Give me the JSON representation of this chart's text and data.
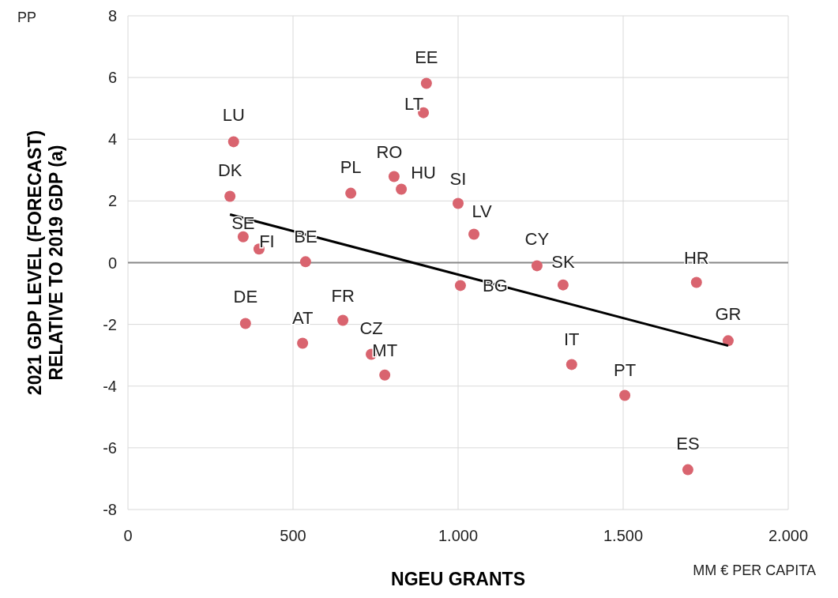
{
  "chart_data": {
    "type": "scatter",
    "xlabel": "NGEU GRANTS",
    "ylabel": "2021 GDP LEVEL (FORECAST)\nRELATIVE TO 2019 GDP (a)",
    "xlim": [
      0,
      2000
    ],
    "xticks": [
      {
        "value": 0,
        "label": "0"
      },
      {
        "value": 500,
        "label": "500"
      },
      {
        "value": 1000,
        "label": "1.000"
      },
      {
        "value": 1500,
        "label": "1.500"
      },
      {
        "value": 2000,
        "label": "2.000"
      }
    ],
    "ylim": [
      -8,
      8
    ],
    "yticks": [
      -8,
      -6,
      -4,
      -2,
      0,
      2,
      4,
      6,
      8
    ],
    "grid": true,
    "ref_lines": [
      {
        "axis": "y",
        "value": 0,
        "color": "#888888"
      }
    ],
    "series": [
      {
        "marker": "circle",
        "color": "#d9646f",
        "x": [
          320,
          309,
          349,
          397,
          538,
          356,
          529,
          675,
          651,
          737,
          778,
          806,
          828,
          895,
          904,
          1000,
          1048,
          1007,
          1239,
          1318,
          1344,
          1505,
          1722,
          1818,
          1696
        ],
        "values": [
          3.92,
          2.15,
          0.84,
          0.44,
          0.03,
          -1.97,
          -2.61,
          2.25,
          -1.87,
          -2.97,
          -3.64,
          2.79,
          2.38,
          4.86,
          5.81,
          1.92,
          0.92,
          -0.74,
          -0.1,
          -0.72,
          -3.3,
          -4.3,
          -0.64,
          -2.53,
          -6.71
        ]
      },
      {
        "type": "line",
        "color": "#000000",
        "x": [
          309,
          1818
        ],
        "values": [
          1.56,
          -2.69
        ]
      }
    ],
    "annotations": [
      "PP",
      "MM € PER CAPITA",
      {
        "text": "LU",
        "x": 320,
        "y": 3.92
      },
      {
        "text": "DK",
        "x": 309,
        "y": 2.15
      },
      {
        "text": "SE",
        "x": 349,
        "y": 0.84
      },
      {
        "text": "FI",
        "x": 397,
        "y": 0.44
      },
      {
        "text": "BE",
        "x": 538,
        "y": 0.03
      },
      {
        "text": "DE",
        "x": 356,
        "y": -1.97
      },
      {
        "text": "AT",
        "x": 529,
        "y": -2.61
      },
      {
        "text": "PL",
        "x": 675,
        "y": 2.25
      },
      {
        "text": "FR",
        "x": 651,
        "y": -1.87
      },
      {
        "text": "CZ",
        "x": 737,
        "y": -2.97
      },
      {
        "text": "MT",
        "x": 778,
        "y": -3.64
      },
      {
        "text": "RO",
        "x": 806,
        "y": 2.79
      },
      {
        "text": "HU",
        "x": 828,
        "y": 2.38
      },
      {
        "text": "LT",
        "x": 895,
        "y": 4.86
      },
      {
        "text": "EE",
        "x": 904,
        "y": 5.81
      },
      {
        "text": "SI",
        "x": 1000,
        "y": 1.92
      },
      {
        "text": "LV",
        "x": 1048,
        "y": 0.92
      },
      {
        "text": "BG",
        "x": 1007,
        "y": -0.74
      },
      {
        "text": "CY",
        "x": 1239,
        "y": -0.1
      },
      {
        "text": "SK",
        "x": 1318,
        "y": -0.72
      },
      {
        "text": "IT",
        "x": 1344,
        "y": -3.3
      },
      {
        "text": "PT",
        "x": 1505,
        "y": -4.3
      },
      {
        "text": "HR",
        "x": 1722,
        "y": -0.64
      },
      {
        "text": "GR",
        "x": 1818,
        "y": -2.53
      },
      {
        "text": "ES",
        "x": 1696,
        "y": -6.71
      }
    ]
  }
}
